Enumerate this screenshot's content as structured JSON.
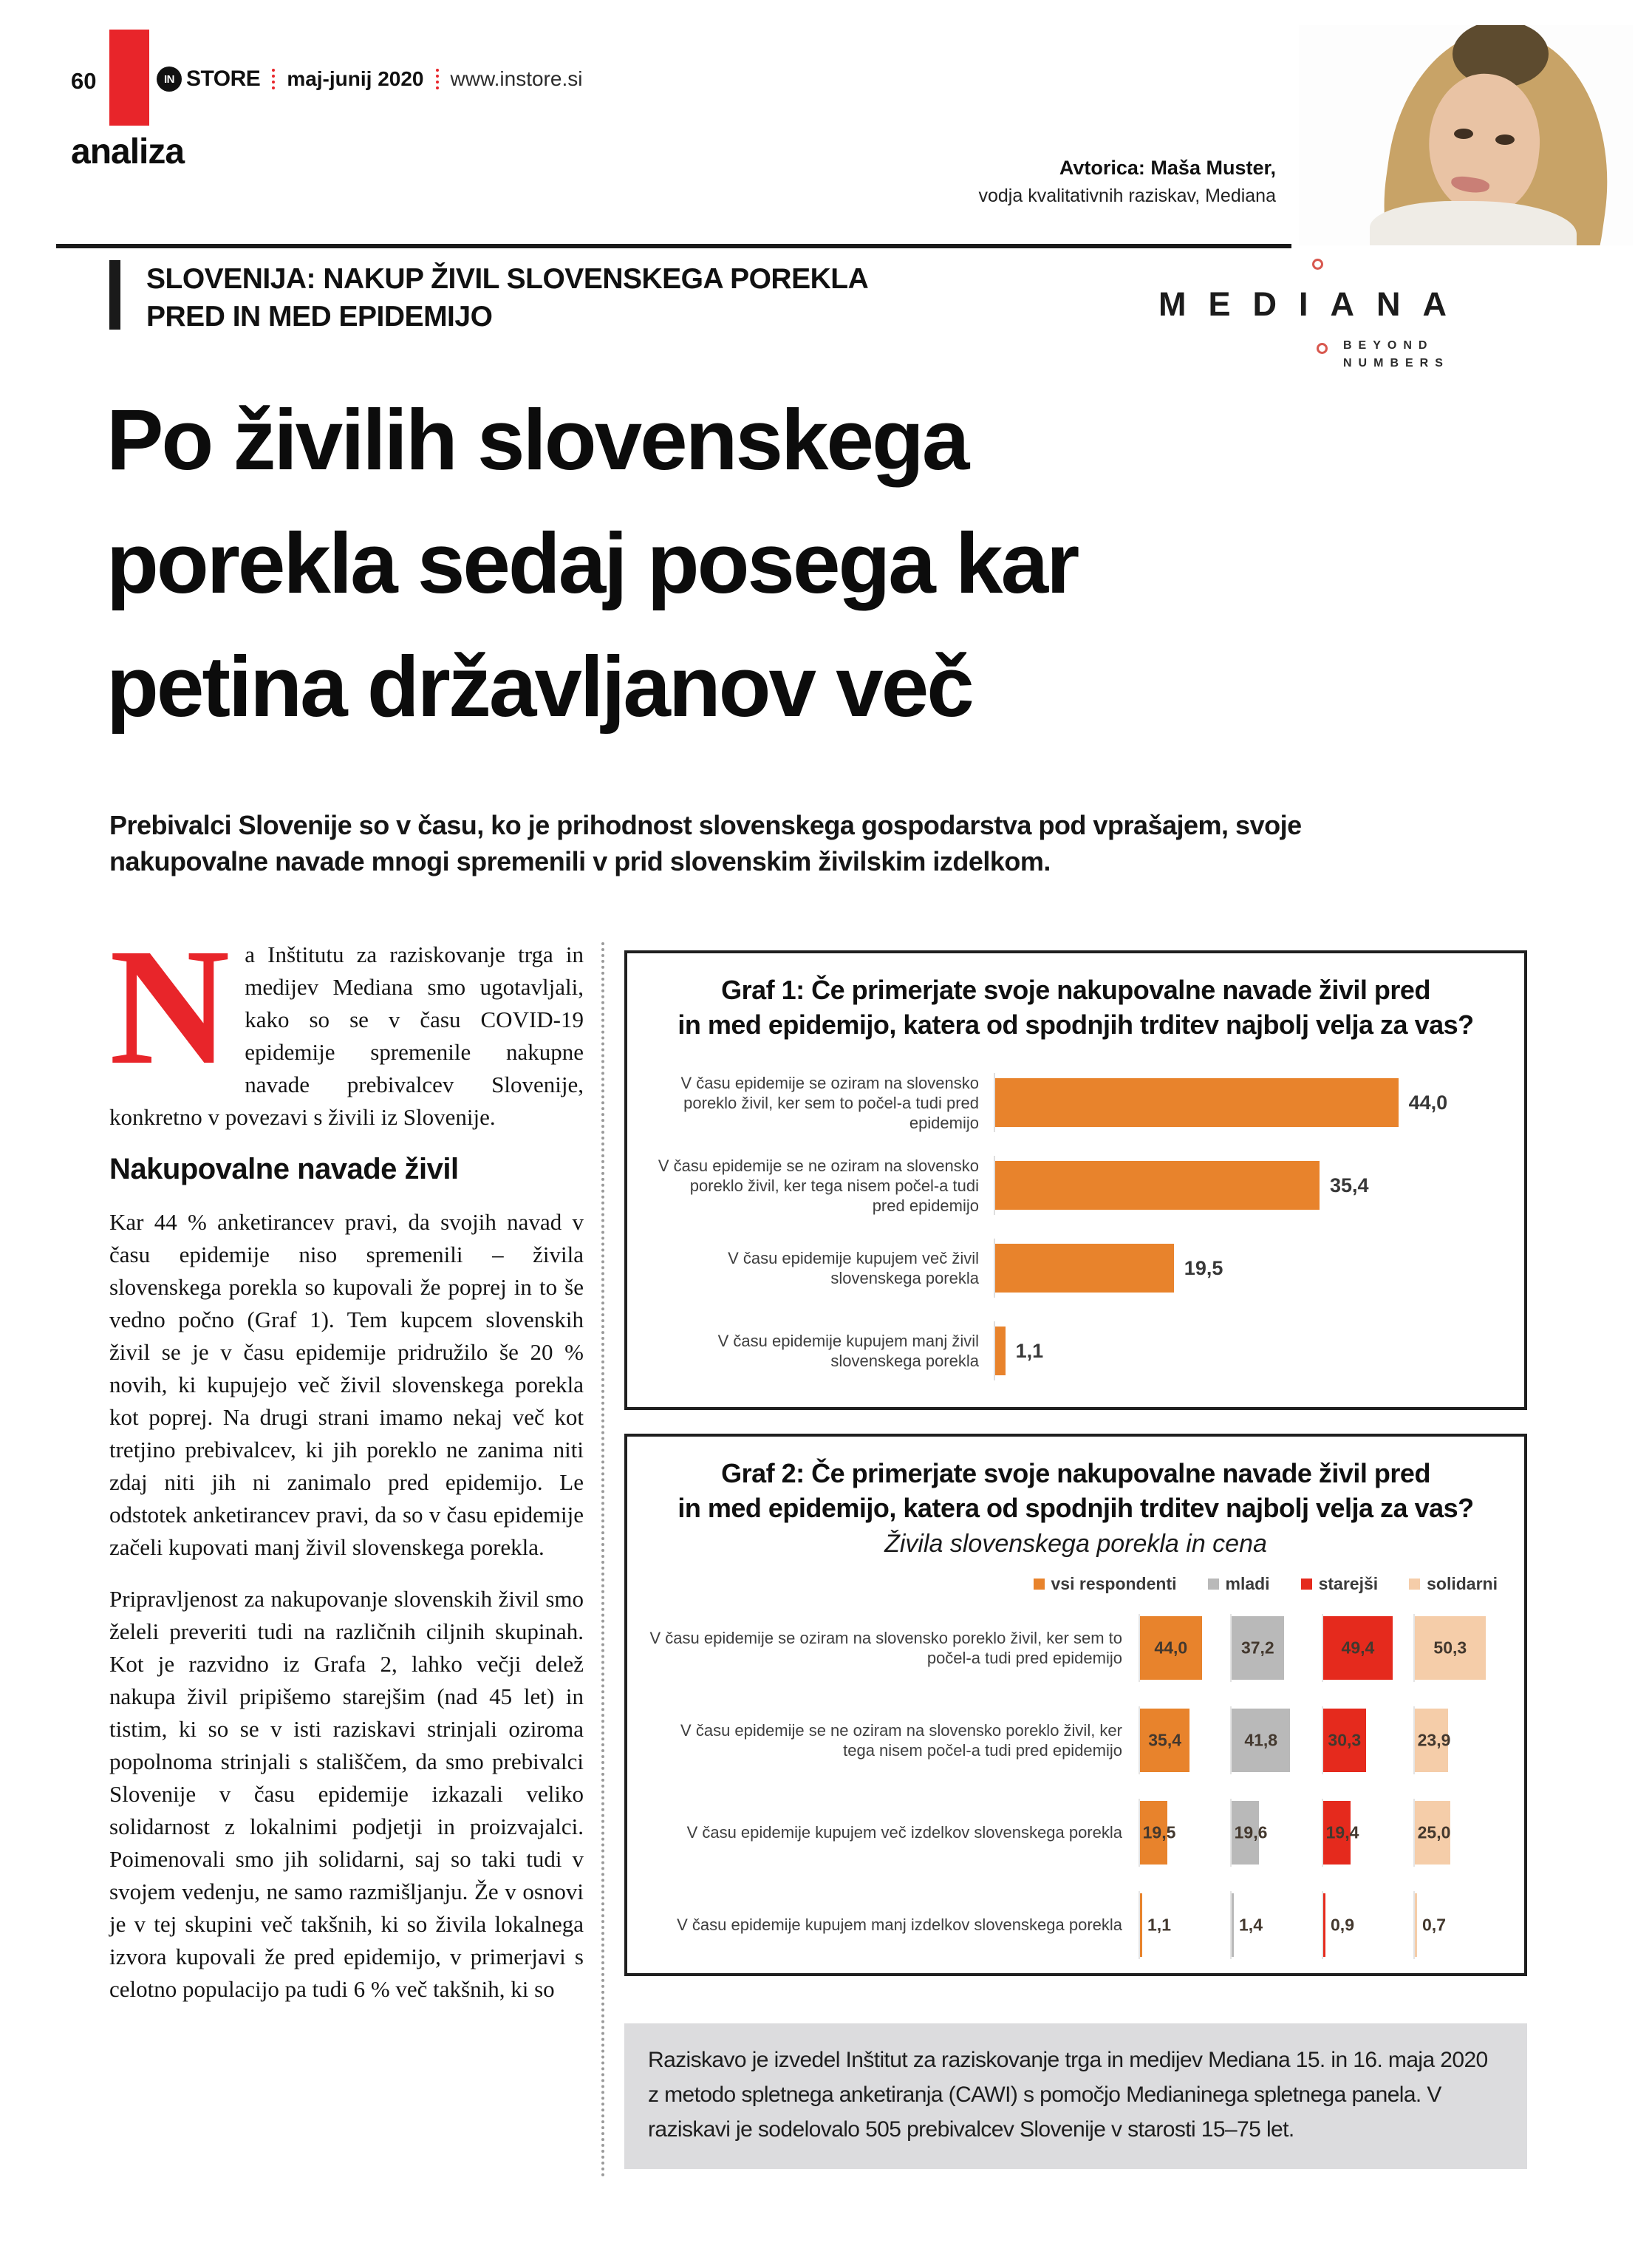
{
  "page": {
    "number": "60",
    "magazine_prefix": "IN",
    "magazine_name": "STORE",
    "issue": "maj-junij 2020",
    "website": "www.instore.si",
    "section": "analiza",
    "author_name": "Avtorica: Maša Muster,",
    "author_role": "vodja kvalitativnih raziskav, Mediana"
  },
  "brand": {
    "logo_text": "MEDIANA",
    "tagline_line1": "BEYOND",
    "tagline_line2": "NUMBERS"
  },
  "article": {
    "kicker_line1": "SLOVENIJA: NAKUP ŽIVIL SLOVENSKEGA POREKLA",
    "kicker_line2": "PRED IN MED EPIDEMIJO",
    "headline_line1": "Po živilih slovenskega",
    "headline_line2": "porekla sedaj posega kar",
    "headline_line3": "petina državljanov več",
    "lede": "Prebivalci Slovenije so v času, ko je prihodnost slovenskega gospodarstva pod vprašajem, svoje nakupovalne navade mnogi spremenili v prid slovenskim živilskim izdelkom.",
    "dropcap": "N",
    "para1": "a Inštitutu za raziskovanje trga in medijev Mediana smo ugotavljali, kako so se v času COVID-19 epidemije spremenile nakupne navade prebivalcev Slovenije, konkretno v povezavi s živili iz Slovenije.",
    "subhead": "Nakupovalne navade živil",
    "para2": "Kar 44 % anketirancev pravi, da svojih navad v času epidemije niso spremenili – živila slovenskega porekla so kupovali že poprej in to še vedno počno (Graf 1). Tem kupcem slovenskih živil se je v času epidemije pridružilo še 20 % novih, ki kupujejo več živil slovenskega porekla kot poprej. Na drugi strani imamo nekaj več kot tretjino prebivalcev, ki jih poreklo ne zanima niti zdaj niti jih ni zanimalo pred epidemijo. Le odstotek anketirancev pravi, da so v času epidemije začeli kupovati manj živil slovenskega porekla.",
    "para3": "Pripravljenost za nakupovanje slovenskih živil smo želeli preveriti tudi na različnih ciljnih skupinah. Kot je razvidno iz Grafa 2, lahko večji delež nakupa živil pripišemo starejšim (nad 45 let) in tistim, ki so se v isti raziskavi strinjali oziroma popolnoma strinjali s stališčem, da smo prebivalci Slovenije v času epidemije izkazali veliko solidarnost z lokalnimi podjetji in proizvajalci. Poimenovali smo jih solidarni, saj so taki tudi v svojem vedenju, ne samo razmišljanju. Že v osnovi je v tej skupini več takšnih, ki so živila lokalnega izvora kupovali že pred epidemijo, v primerjavi s celotno populacijo pa tudi 6 % več takšnih, ki so"
  },
  "chart_data": [
    {
      "id": "graf1",
      "type": "bar",
      "orientation": "horizontal",
      "title_line1": "Graf 1: Če primerjate svoje nakupovalne navade živil pred",
      "title_line2": "in med epidemijo, katera od spodnjih trditev najbolj velja za vas?",
      "categories": [
        "V času epidemije se oziram na slovensko poreklo živil, ker sem to počel-a tudi pred epidemijo",
        "V času epidemije se ne oziram na slovensko poreklo živil, ker tega nisem počel-a tudi pred epidemijo",
        "V času epidemije kupujem več živil slovenskega porekla",
        "V času epidemije kupujem manj živil slovenskega porekla"
      ],
      "values": [
        44.0,
        35.4,
        19.5,
        1.1
      ],
      "value_labels": [
        "44,0",
        "35,4",
        "19,5",
        "1,1"
      ],
      "bar_color": "#e8832c",
      "xlim": [
        0,
        50
      ],
      "grid": false,
      "legend_position": "none"
    },
    {
      "id": "graf2",
      "type": "bar",
      "orientation": "horizontal-grouped",
      "title_line1": "Graf 2: Če primerjate svoje nakupovalne navade živil pred",
      "title_line2": "in med epidemijo, katera od spodnjih trditev najbolj velja za vas?",
      "subtitle": "Živila slovenskega porekla in cena",
      "legend_position": "top-right",
      "categories": [
        "V času epidemije se oziram na slovensko poreklo živil, ker sem to počel-a tudi pred epidemijo",
        "V času epidemije se ne oziram na slovensko poreklo živil, ker tega nisem počel-a tudi pred epidemijo",
        "V času epidemije kupujem več izdelkov slovenskega porekla",
        "V času epidemije kupujem manj izdelkov slovenskega porekla"
      ],
      "series": [
        {
          "name": "vsi respondenti",
          "color": "#e8832c",
          "values": [
            44.0,
            35.4,
            19.5,
            1.1
          ],
          "value_labels": [
            "44,0",
            "35,4",
            "19,5",
            "1,1"
          ]
        },
        {
          "name": "mladi",
          "color": "#b9b9b9",
          "values": [
            37.2,
            41.8,
            19.6,
            1.4
          ],
          "value_labels": [
            "37,2",
            "41,8",
            "19,6",
            "1,4"
          ]
        },
        {
          "name": "starejši",
          "color": "#e52a1d",
          "values": [
            49.4,
            30.3,
            19.4,
            0.9
          ],
          "value_labels": [
            "49,4",
            "30,3",
            "19,4",
            "0,9"
          ]
        },
        {
          "name": "solidarni",
          "color": "#f5cda9",
          "values": [
            50.3,
            23.9,
            25.0,
            0.7
          ],
          "value_labels": [
            "50,3",
            "23,9",
            "25,0",
            "0,7"
          ]
        }
      ],
      "xlim": [
        0,
        55
      ],
      "grid": false
    }
  ],
  "footnote": "Raziskavo je izvedel Inštitut za raziskovanje trga in medijev Mediana 15. in 16. maja 2020 z metodo spletnega anketiranja (CAWI) s pomočjo Medianinega spletnega panela. V raziskavi je sodelovalo 505 prebivalcev Slovenije v starosti 15–75 let.",
  "colors": {
    "accent_red": "#e8252a",
    "bar_orange": "#e8832c",
    "bar_gray": "#b9b9b9",
    "bar_red": "#e52a1d",
    "bar_peach": "#f5cda9",
    "footnote_bg": "#dcdcde"
  }
}
